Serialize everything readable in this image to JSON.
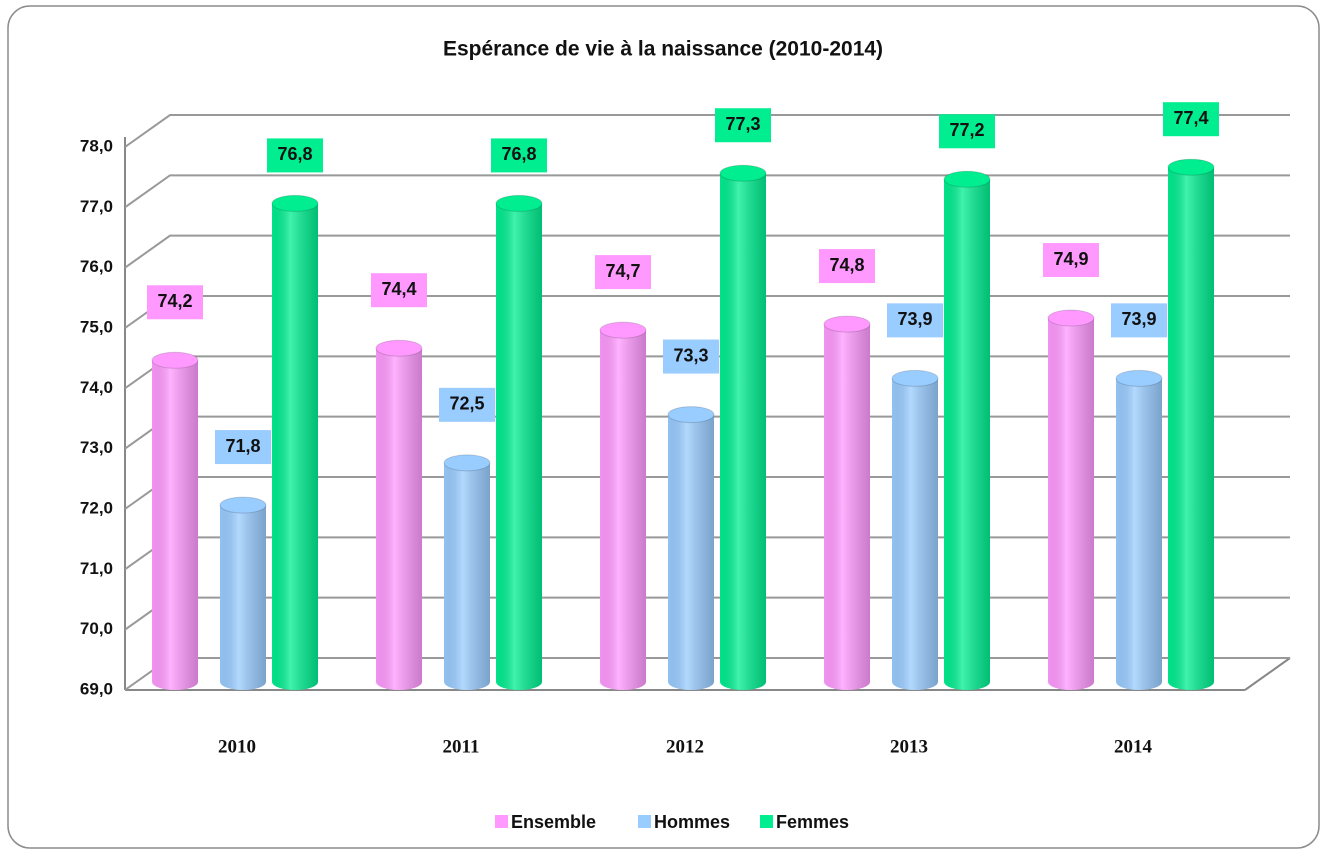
{
  "chart_data": {
    "type": "bar",
    "title": "Espérance de vie à la naissance (2010-2014)",
    "categories": [
      "2010",
      "2011",
      "2012",
      "2013",
      "2014"
    ],
    "series": [
      {
        "name": "Ensemble",
        "color": "#ff99ff",
        "values": [
          74.2,
          74.4,
          74.7,
          74.8,
          74.9
        ],
        "value_labels": [
          "74,2",
          "74,4",
          "74,7",
          "74,8",
          "74,9"
        ]
      },
      {
        "name": "Hommes",
        "color": "#99ccff",
        "values": [
          71.8,
          72.5,
          73.3,
          73.9,
          73.9
        ],
        "value_labels": [
          "71,8",
          "72,5",
          "73,3",
          "73,9",
          "73,9"
        ]
      },
      {
        "name": "Femmes",
        "color": "#00ee90",
        "values": [
          76.8,
          76.8,
          77.3,
          77.2,
          77.4
        ],
        "value_labels": [
          "76,8",
          "76,8",
          "77,3",
          "77,2",
          "77,4"
        ]
      }
    ],
    "ylim": [
      69,
      78
    ],
    "yticks": [
      {
        "value": 69,
        "label": "69,0"
      },
      {
        "value": 70,
        "label": "70,0"
      },
      {
        "value": 71,
        "label": "71,0"
      },
      {
        "value": 72,
        "label": "72,0"
      },
      {
        "value": 73,
        "label": "73,0"
      },
      {
        "value": 74,
        "label": "74,0"
      },
      {
        "value": 75,
        "label": "75,0"
      },
      {
        "value": 76,
        "label": "76,0"
      },
      {
        "value": 77,
        "label": "77,0"
      },
      {
        "value": 78,
        "label": "78,0"
      }
    ],
    "grid": true,
    "legend": "bottom"
  }
}
